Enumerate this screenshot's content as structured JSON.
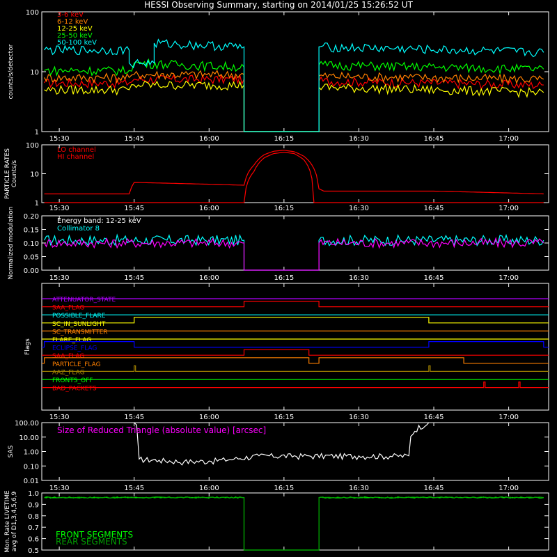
{
  "title": "HESSI Observing Summary, starting on 2014/01/25 15:26:52 UT",
  "time_ticks": [
    "15:30",
    "15:45",
    "16:00",
    "16:15",
    "16:30",
    "16:45",
    "17:00"
  ],
  "colors": {
    "cyan": "#00ffff",
    "red": "#ff0000",
    "orange": "#ff8000",
    "yellow": "#ffff00",
    "green": "#00ff00",
    "magenta": "#ff00ff",
    "blue": "#0000ff",
    "purple": "#b000ff",
    "olive": "#a08000",
    "white": "#ffffff",
    "darkred": "#e00000"
  },
  "chart_data": [
    {
      "type": "line",
      "name": "count_rates",
      "ylabel": "counts/s/detector",
      "yscale": "log",
      "ylim": [
        1,
        100
      ],
      "yticks": [
        "1",
        "10",
        "100"
      ],
      "series": [
        {
          "name": "3-6 keV",
          "color": "#ff0000",
          "x": [
            "15:27",
            "15:44",
            "15:45",
            "16:07",
            "16:07",
            "16:22",
            "16:22",
            "17:07"
          ],
          "values": [
            6.5,
            6.5,
            7.5,
            7.5,
            1,
            1,
            7.0,
            6.0
          ]
        },
        {
          "name": "6-12 keV",
          "color": "#ff8000",
          "x": [
            "15:27",
            "15:44",
            "15:45",
            "16:07",
            "16:07",
            "16:22",
            "16:22",
            "17:07"
          ],
          "values": [
            8.0,
            8.0,
            9.0,
            9.0,
            1,
            1,
            8.5,
            7.5
          ]
        },
        {
          "name": "12-25 keV",
          "color": "#ffff00",
          "x": [
            "15:27",
            "15:44",
            "15:45",
            "16:07",
            "16:07",
            "16:22",
            "16:22",
            "17:07"
          ],
          "values": [
            5.0,
            5.0,
            6.0,
            6.0,
            1,
            1,
            5.5,
            4.5
          ]
        },
        {
          "name": "25-50 keV",
          "color": "#00ff00",
          "x": [
            "15:27",
            "15:44",
            "15:45",
            "16:07",
            "16:07",
            "16:22",
            "16:22",
            "17:07"
          ],
          "values": [
            10.5,
            10.5,
            14,
            12,
            1,
            1,
            13,
            11
          ]
        },
        {
          "name": "50-100 keV",
          "color": "#00ffff",
          "x": [
            "15:27",
            "15:44",
            "15:44",
            "15:49",
            "15:49",
            "16:07",
            "16:07",
            "16:22",
            "16:22",
            "17:07"
          ],
          "values": [
            23,
            23,
            14,
            14,
            30,
            26,
            1,
            1,
            26,
            21
          ]
        }
      ]
    },
    {
      "type": "line",
      "name": "particle_rates",
      "ylabel": "PARTICLE RATES Counts/s",
      "yscale": "log",
      "ylim": [
        1,
        100
      ],
      "yticks": [
        "1",
        "10",
        "100"
      ],
      "series": [
        {
          "name": "LO channel",
          "color": "#ff0000",
          "x": [
            "15:27",
            "15:44",
            "15:45",
            "16:07",
            "16:09",
            "16:11",
            "16:13",
            "16:15",
            "16:17",
            "16:19",
            "16:21",
            "16:22",
            "16:23",
            "16:45",
            "17:07"
          ],
          "values": [
            2,
            2,
            5,
            4,
            20,
            45,
            60,
            65,
            58,
            40,
            15,
            3,
            2.5,
            2.5,
            2
          ]
        },
        {
          "name": "HI channel",
          "color": "#ff0000",
          "x": [
            "15:27",
            "16:07",
            "16:09",
            "16:11",
            "16:13",
            "16:15",
            "16:17",
            "16:19",
            "16:21",
            "17:07"
          ],
          "values": [
            1,
            1,
            12,
            35,
            50,
            55,
            50,
            30,
            1,
            1
          ]
        }
      ]
    },
    {
      "type": "line",
      "name": "modulation",
      "ylabel": "Normalized modulation",
      "ylim": [
        0,
        0.2
      ],
      "yticks": [
        "0.00",
        "0.05",
        "0.10",
        "0.15",
        "0.20"
      ],
      "annotation": "Energy band: 12-25 keV",
      "series": [
        {
          "name": "Collimator 8",
          "color": "#00ffff",
          "x": [
            "15:27",
            "16:07",
            "16:07",
            "16:22",
            "16:22",
            "17:07"
          ],
          "values": [
            0.11,
            0.11,
            0.0,
            0.0,
            0.11,
            0.11
          ]
        },
        {
          "name": "",
          "color": "#ff00ff",
          "x": [
            "15:27",
            "16:07",
            "16:07",
            "16:22",
            "16:22",
            "17:07"
          ],
          "values": [
            0.1,
            0.1,
            0.0,
            0.0,
            0.1,
            0.1
          ]
        }
      ]
    },
    {
      "type": "line",
      "name": "flags",
      "ylabel": "Flags",
      "flags": [
        {
          "name": "ATTENUATOR_STATE",
          "color": "#b000ff",
          "on": []
        },
        {
          "name": "SAA_FLAG",
          "color": "#ff0000",
          "on": [
            [
              "16:07",
              "16:22"
            ]
          ]
        },
        {
          "name": "POSSIBLE_FLARE",
          "color": "#00ffff",
          "on": []
        },
        {
          "name": "SC_IN_SUNLIGHT",
          "color": "#ffff00",
          "on": [
            [
              "15:45",
              "16:44"
            ]
          ]
        },
        {
          "name": "SC_TRANSMITTER",
          "color": "#ff8000",
          "on": []
        },
        {
          "name": "FLARE_FLAG",
          "color": "#ffff00",
          "on": []
        },
        {
          "name": "ECLIPSE_FLAG",
          "color": "#0000ff",
          "on": [
            [
              "15:27",
              "15:45"
            ],
            [
              "16:44",
              "17:07"
            ]
          ]
        },
        {
          "name": "SAA_FLAG",
          "color": "#ff0000",
          "on": [
            [
              "16:07",
              "16:20"
            ]
          ]
        },
        {
          "name": "PARTICLE_FLAG",
          "color": "#ff8000",
          "on": [
            [
              "15:27",
              "16:20"
            ],
            [
              "16:22",
              "16:51"
            ]
          ]
        },
        {
          "name": "AAZ_FLAG",
          "color": "#a08000",
          "on": [
            [
              "15:45",
              "15:45"
            ],
            [
              "16:44",
              "16:44"
            ]
          ]
        },
        {
          "name": "FRONTS_OFF",
          "color": "#00ff00",
          "on": []
        },
        {
          "name": "BAD_PACKETS",
          "color": "#ff0000",
          "on": [
            [
              "16:55",
              "16:55"
            ],
            [
              "17:02",
              "17:02"
            ]
          ]
        }
      ]
    },
    {
      "type": "line",
      "name": "sas",
      "ylabel": "SAS",
      "yscale": "log",
      "ylim": [
        0.01,
        100
      ],
      "yticks": [
        "0.01",
        "0.10",
        "1.00",
        "10.00",
        "100.00"
      ],
      "annotation": "Size of Reduced Triangle (absolute value) [arcsec]",
      "series": [
        {
          "name": "",
          "color": "#ffffff",
          "x": [
            "15:45",
            "15:46",
            "15:50",
            "15:55",
            "16:00",
            "16:05",
            "16:10",
            "16:20",
            "16:30",
            "16:40",
            "16:44"
          ],
          "values": [
            100,
            0.3,
            0.25,
            0.2,
            0.22,
            0.3,
            0.5,
            0.5,
            0.5,
            0.5,
            100
          ]
        }
      ]
    },
    {
      "type": "line",
      "name": "livetime",
      "ylabel": "Mon. Rate LIVETIME avg of D1,3,4,5,6,9",
      "ylim": [
        0.5,
        1.0
      ],
      "yticks": [
        "0.5",
        "0.6",
        "0.7",
        "0.8",
        "0.9",
        "1.0"
      ],
      "series": [
        {
          "name": "FRONT SEGMENTS",
          "color": "#00ff00",
          "x": [
            "15:27",
            "16:07",
            "16:07",
            "16:22",
            "16:22",
            "17:07"
          ],
          "values": [
            0.96,
            0.96,
            0.5,
            0.5,
            0.96,
            0.96
          ]
        },
        {
          "name": "REAR SEGMENTS",
          "color": "#00a000",
          "x": [
            "15:27",
            "16:07",
            "16:07",
            "16:22",
            "16:22",
            "17:07"
          ],
          "values": [
            0.96,
            0.96,
            0.5,
            0.5,
            0.96,
            0.96
          ]
        }
      ]
    }
  ]
}
